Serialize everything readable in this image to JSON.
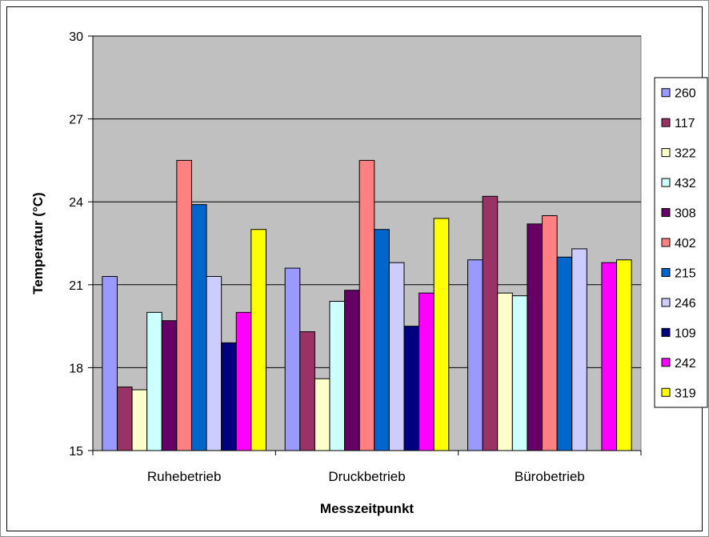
{
  "chart_data": {
    "type": "bar",
    "xlabel": "Messzeitpunkt",
    "ylabel": "Temperatur (°C)",
    "ylim": [
      15,
      30
    ],
    "yticks": [
      "15",
      "18",
      "21",
      "24",
      "27",
      "30"
    ],
    "grid": true,
    "legend_position": "right",
    "categories": [
      "Ruhebetrieb",
      "Druckbetrieb",
      "Bürobetrieb"
    ],
    "series": [
      {
        "name": "260",
        "color": "#9999ff",
        "values": [
          21.3,
          21.6,
          21.9
        ]
      },
      {
        "name": "117",
        "color": "#993366",
        "values": [
          17.3,
          19.3,
          24.2
        ]
      },
      {
        "name": "322",
        "color": "#ffffcc",
        "values": [
          17.2,
          17.6,
          20.7
        ]
      },
      {
        "name": "432",
        "color": "#ccffff",
        "values": [
          20.0,
          20.4,
          20.6
        ]
      },
      {
        "name": "308",
        "color": "#660066",
        "values": [
          19.7,
          20.8,
          23.2
        ]
      },
      {
        "name": "402",
        "color": "#ff8080",
        "values": [
          25.5,
          25.5,
          23.5
        ]
      },
      {
        "name": "215",
        "color": "#0066cc",
        "values": [
          23.9,
          23.0,
          22.0
        ]
      },
      {
        "name": "246",
        "color": "#ccccff",
        "values": [
          21.3,
          21.8,
          22.3
        ]
      },
      {
        "name": "109",
        "color": "#000080",
        "values": [
          18.9,
          19.5,
          null
        ]
      },
      {
        "name": "242",
        "color": "#ff00ff",
        "values": [
          20.0,
          20.7,
          21.8
        ]
      },
      {
        "name": "319",
        "color": "#ffff00",
        "values": [
          23.0,
          23.4,
          21.9
        ]
      }
    ],
    "plot_background": "#c0c0c0"
  }
}
